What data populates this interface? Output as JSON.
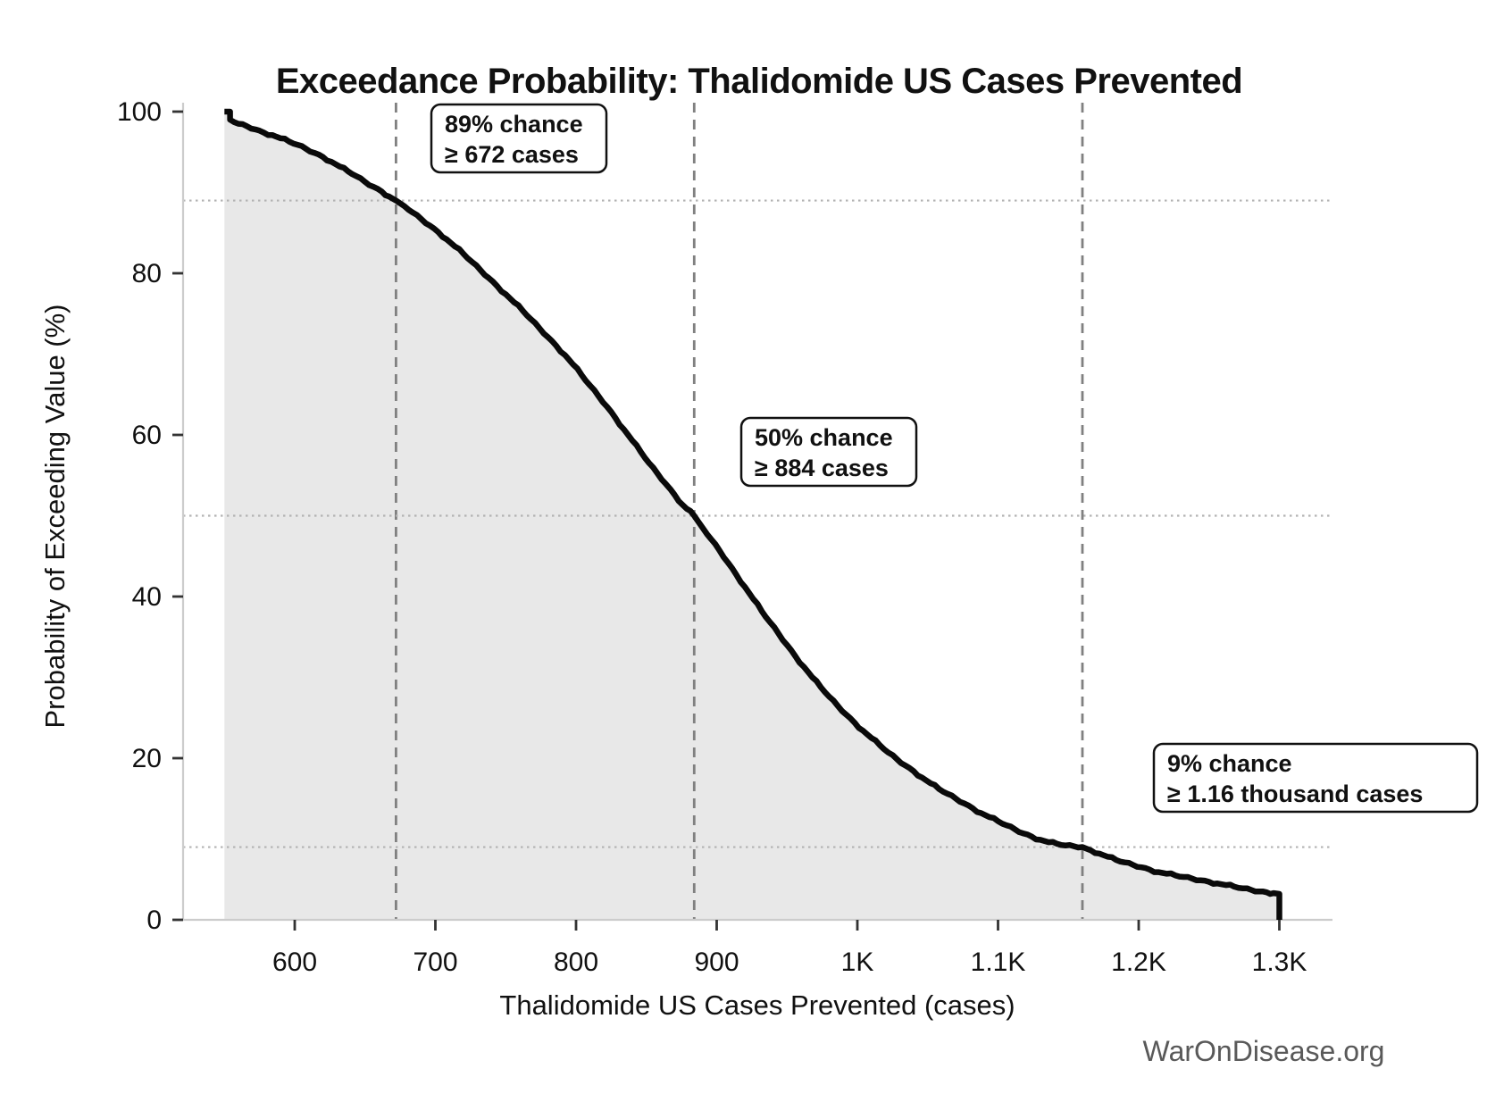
{
  "title": "Exceedance Probability: Thalidomide US Cases Prevented",
  "watermark": "WarOnDisease.org",
  "chart_data": {
    "type": "area",
    "title": "Exceedance Probability: Thalidomide US Cases Prevented",
    "xlabel": "Thalidomide US Cases Prevented (cases)",
    "ylabel": "Probability of Exceeding Value (%)",
    "xlim": [
      521,
      1338
    ],
    "ylim": [
      0,
      102
    ],
    "grid": "reference dotted horizontal lines at 89%, 50%, 9%; dashed vertical lines at 672, 884, 1160 cases",
    "legend_position": "none",
    "x_ticks": [
      {
        "v": 600,
        "label": "600"
      },
      {
        "v": 700,
        "label": "700"
      },
      {
        "v": 800,
        "label": "800"
      },
      {
        "v": 900,
        "label": "900"
      },
      {
        "v": 1000,
        "label": "1K"
      },
      {
        "v": 1100,
        "label": "1.1K"
      },
      {
        "v": 1200,
        "label": "1.2K"
      },
      {
        "v": 1300,
        "label": "1.3K"
      }
    ],
    "y_ticks": [
      {
        "v": 0,
        "label": "0"
      },
      {
        "v": 20,
        "label": "20"
      },
      {
        "v": 40,
        "label": "40"
      },
      {
        "v": 60,
        "label": "60"
      },
      {
        "v": 80,
        "label": "80"
      },
      {
        "v": 100,
        "label": "100"
      }
    ],
    "annotations": [
      {
        "probability_pct": 89,
        "threshold_cases": 672,
        "line1": "89% chance",
        "line2": "≥ 672 cases"
      },
      {
        "probability_pct": 50,
        "threshold_cases": 884,
        "line1": "50% chance",
        "line2": "≥ 884 cases"
      },
      {
        "probability_pct": 9,
        "threshold_cases": 1160,
        "line1": "9% chance",
        "line2": "≥ 1.16 thousand cases"
      }
    ],
    "colors": {
      "line": "#0a0a0a",
      "fill": "#e8e8e8",
      "dashed_ref": "#808080",
      "dotted_ref": "#b3b3b3",
      "spine": "#cccccc",
      "tick": "#333333",
      "watermark": "#595959"
    },
    "curve": [
      [
        550,
        100
      ],
      [
        554,
        100
      ],
      [
        554,
        99.0
      ],
      [
        560,
        98.5
      ],
      [
        566,
        98.2
      ],
      [
        572,
        97.8
      ],
      [
        578,
        97.4
      ],
      [
        584,
        97.1
      ],
      [
        590,
        96.7
      ],
      [
        596,
        96.3
      ],
      [
        602,
        95.9
      ],
      [
        608,
        95.4
      ],
      [
        614,
        94.9
      ],
      [
        620,
        94.4
      ],
      [
        626,
        93.8
      ],
      [
        632,
        93.2
      ],
      [
        638,
        92.6
      ],
      [
        644,
        92.0
      ],
      [
        650,
        91.3
      ],
      [
        656,
        90.7
      ],
      [
        662,
        90.1
      ],
      [
        667,
        89.5
      ],
      [
        672,
        89.0
      ],
      [
        678,
        88.3
      ],
      [
        684,
        87.5
      ],
      [
        690,
        86.7
      ],
      [
        696,
        85.9
      ],
      [
        702,
        85.1
      ],
      [
        708,
        84.2
      ],
      [
        714,
        83.3
      ],
      [
        720,
        82.4
      ],
      [
        726,
        81.4
      ],
      [
        732,
        80.4
      ],
      [
        738,
        79.4
      ],
      [
        744,
        78.4
      ],
      [
        750,
        77.4
      ],
      [
        756,
        76.4
      ],
      [
        762,
        75.4
      ],
      [
        768,
        74.3
      ],
      [
        774,
        73.2
      ],
      [
        780,
        72.1
      ],
      [
        786,
        71.0
      ],
      [
        792,
        69.9
      ],
      [
        798,
        68.7
      ],
      [
        804,
        67.4
      ],
      [
        810,
        66.1
      ],
      [
        816,
        64.8
      ],
      [
        822,
        63.5
      ],
      [
        828,
        62.1
      ],
      [
        834,
        60.7
      ],
      [
        840,
        59.3
      ],
      [
        846,
        57.9
      ],
      [
        852,
        56.5
      ],
      [
        858,
        55.2
      ],
      [
        864,
        53.9
      ],
      [
        870,
        52.6
      ],
      [
        876,
        51.3
      ],
      [
        884,
        50.0
      ],
      [
        890,
        48.5
      ],
      [
        896,
        47.1
      ],
      [
        902,
        45.7
      ],
      [
        908,
        44.2
      ],
      [
        914,
        42.7
      ],
      [
        920,
        41.2
      ],
      [
        926,
        39.7
      ],
      [
        932,
        38.2
      ],
      [
        938,
        36.8
      ],
      [
        944,
        35.4
      ],
      [
        950,
        34.0
      ],
      [
        956,
        32.6
      ],
      [
        962,
        31.3
      ],
      [
        968,
        30.0
      ],
      [
        974,
        28.8
      ],
      [
        980,
        27.6
      ],
      [
        986,
        26.5
      ],
      [
        992,
        25.4
      ],
      [
        998,
        24.4
      ],
      [
        1004,
        23.4
      ],
      [
        1010,
        22.5
      ],
      [
        1016,
        21.6
      ],
      [
        1022,
        20.7
      ],
      [
        1028,
        19.9
      ],
      [
        1034,
        19.1
      ],
      [
        1040,
        18.4
      ],
      [
        1046,
        17.6
      ],
      [
        1052,
        16.9
      ],
      [
        1058,
        16.2
      ],
      [
        1064,
        15.6
      ],
      [
        1070,
        15.0
      ],
      [
        1076,
        14.4
      ],
      [
        1082,
        13.8
      ],
      [
        1088,
        13.2
      ],
      [
        1094,
        12.7
      ],
      [
        1100,
        12.2
      ],
      [
        1106,
        11.7
      ],
      [
        1112,
        11.2
      ],
      [
        1118,
        10.7
      ],
      [
        1124,
        10.3
      ],
      [
        1130,
        9.9
      ],
      [
        1136,
        9.6
      ],
      [
        1142,
        9.4
      ],
      [
        1148,
        9.2
      ],
      [
        1154,
        9.1
      ],
      [
        1160,
        9.0
      ],
      [
        1166,
        8.6
      ],
      [
        1172,
        8.2
      ],
      [
        1178,
        7.8
      ],
      [
        1184,
        7.4
      ],
      [
        1190,
        7.1
      ],
      [
        1196,
        6.8
      ],
      [
        1202,
        6.5
      ],
      [
        1208,
        6.2
      ],
      [
        1214,
        5.9
      ],
      [
        1220,
        5.7
      ],
      [
        1226,
        5.5
      ],
      [
        1232,
        5.3
      ],
      [
        1238,
        5.1
      ],
      [
        1244,
        4.9
      ],
      [
        1250,
        4.7
      ],
      [
        1256,
        4.5
      ],
      [
        1262,
        4.3
      ],
      [
        1268,
        4.1
      ],
      [
        1274,
        3.9
      ],
      [
        1280,
        3.7
      ],
      [
        1286,
        3.5
      ],
      [
        1291,
        3.4
      ],
      [
        1296,
        3.3
      ],
      [
        1300,
        3.2
      ],
      [
        1300,
        0
      ]
    ]
  }
}
